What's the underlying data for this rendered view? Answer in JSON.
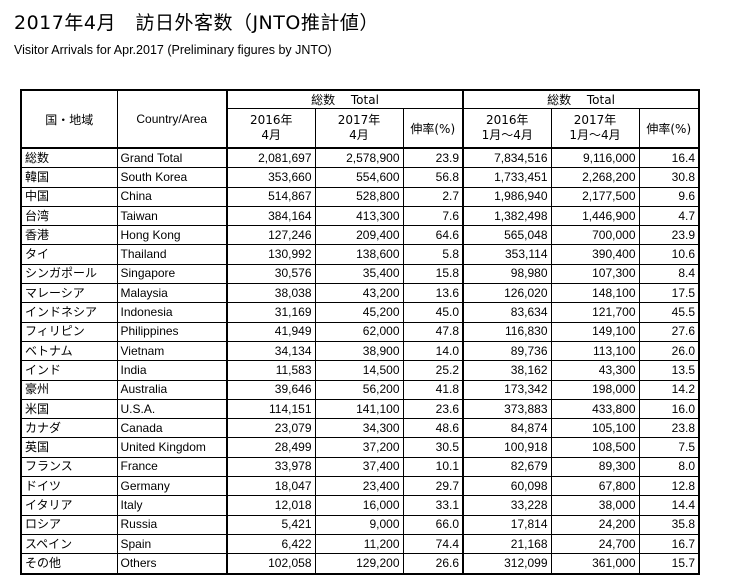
{
  "title": "2017年4月　訪日外客数（JNTO推計値）",
  "subtitle": "Visitor Arrivals for Apr.2017 (Preliminary figures by JNTO)",
  "header": {
    "col_region_jp": "国・地域",
    "col_country_en": "Country/Area",
    "group1": "総数　 Total",
    "group2": "総数　 Total",
    "g1_c1_l1": "2016年",
    "g1_c1_l2": "4月",
    "g1_c2_l1": "2017年",
    "g1_c2_l2": "4月",
    "g1_c3": "伸率(%)",
    "g2_c1_l1": "2016年",
    "g2_c1_l2": "1月～4月",
    "g2_c2_l1": "2017年",
    "g2_c2_l2": "1月～4月",
    "g2_c3": "伸率(%)"
  },
  "rows": [
    {
      "jp": "総数",
      "en": "Grand Total",
      "a16": "2,081,697",
      "a17": "2,578,900",
      "ag": "23.9",
      "c16": "7,834,516",
      "c17": "9,116,000",
      "cg": "16.4"
    },
    {
      "jp": "韓国",
      "en": "South Korea",
      "a16": "353,660",
      "a17": "554,600",
      "ag": "56.8",
      "c16": "1,733,451",
      "c17": "2,268,200",
      "cg": "30.8"
    },
    {
      "jp": "中国",
      "en": "China",
      "a16": "514,867",
      "a17": "528,800",
      "ag": "2.7",
      "c16": "1,986,940",
      "c17": "2,177,500",
      "cg": "9.6"
    },
    {
      "jp": "台湾",
      "en": "Taiwan",
      "a16": "384,164",
      "a17": "413,300",
      "ag": "7.6",
      "c16": "1,382,498",
      "c17": "1,446,900",
      "cg": "4.7"
    },
    {
      "jp": "香港",
      "en": "Hong Kong",
      "a16": "127,246",
      "a17": "209,400",
      "ag": "64.6",
      "c16": "565,048",
      "c17": "700,000",
      "cg": "23.9"
    },
    {
      "jp": "タイ",
      "en": "Thailand",
      "a16": "130,992",
      "a17": "138,600",
      "ag": "5.8",
      "c16": "353,114",
      "c17": "390,400",
      "cg": "10.6"
    },
    {
      "jp": "シンガポール",
      "en": "Singapore",
      "a16": "30,576",
      "a17": "35,400",
      "ag": "15.8",
      "c16": "98,980",
      "c17": "107,300",
      "cg": "8.4"
    },
    {
      "jp": "マレーシア",
      "en": "Malaysia",
      "a16": "38,038",
      "a17": "43,200",
      "ag": "13.6",
      "c16": "126,020",
      "c17": "148,100",
      "cg": "17.5"
    },
    {
      "jp": "インドネシア",
      "en": "Indonesia",
      "a16": "31,169",
      "a17": "45,200",
      "ag": "45.0",
      "c16": "83,634",
      "c17": "121,700",
      "cg": "45.5"
    },
    {
      "jp": "フィリピン",
      "en": "Philippines",
      "a16": "41,949",
      "a17": "62,000",
      "ag": "47.8",
      "c16": "116,830",
      "c17": "149,100",
      "cg": "27.6"
    },
    {
      "jp": "ベトナム",
      "en": "Vietnam",
      "a16": "34,134",
      "a17": "38,900",
      "ag": "14.0",
      "c16": "89,736",
      "c17": "113,100",
      "cg": "26.0"
    },
    {
      "jp": "インド",
      "en": "India",
      "a16": "11,583",
      "a17": "14,500",
      "ag": "25.2",
      "c16": "38,162",
      "c17": "43,300",
      "cg": "13.5"
    },
    {
      "jp": "豪州",
      "en": "Australia",
      "a16": "39,646",
      "a17": "56,200",
      "ag": "41.8",
      "c16": "173,342",
      "c17": "198,000",
      "cg": "14.2"
    },
    {
      "jp": "米国",
      "en": "U.S.A.",
      "a16": "114,151",
      "a17": "141,100",
      "ag": "23.6",
      "c16": "373,883",
      "c17": "433,800",
      "cg": "16.0"
    },
    {
      "jp": "カナダ",
      "en": "Canada",
      "a16": "23,079",
      "a17": "34,300",
      "ag": "48.6",
      "c16": "84,874",
      "c17": "105,100",
      "cg": "23.8"
    },
    {
      "jp": "英国",
      "en": "United Kingdom",
      "a16": "28,499",
      "a17": "37,200",
      "ag": "30.5",
      "c16": "100,918",
      "c17": "108,500",
      "cg": "7.5"
    },
    {
      "jp": "フランス",
      "en": "France",
      "a16": "33,978",
      "a17": "37,400",
      "ag": "10.1",
      "c16": "82,679",
      "c17": "89,300",
      "cg": "8.0"
    },
    {
      "jp": "ドイツ",
      "en": "Germany",
      "a16": "18,047",
      "a17": "23,400",
      "ag": "29.7",
      "c16": "60,098",
      "c17": "67,800",
      "cg": "12.8"
    },
    {
      "jp": "イタリア",
      "en": "Italy",
      "a16": "12,018",
      "a17": "16,000",
      "ag": "33.1",
      "c16": "33,228",
      "c17": "38,000",
      "cg": "14.4"
    },
    {
      "jp": "ロシア",
      "en": "Russia",
      "a16": "5,421",
      "a17": "9,000",
      "ag": "66.0",
      "c16": "17,814",
      "c17": "24,200",
      "cg": "35.8"
    },
    {
      "jp": "スペイン",
      "en": "Spain",
      "a16": "6,422",
      "a17": "11,200",
      "ag": "74.4",
      "c16": "21,168",
      "c17": "24,700",
      "cg": "16.7"
    },
    {
      "jp": "その他",
      "en": "Others",
      "a16": "102,058",
      "a17": "129,200",
      "ag": "26.6",
      "c16": "312,099",
      "c17": "361,000",
      "cg": "15.7"
    }
  ]
}
